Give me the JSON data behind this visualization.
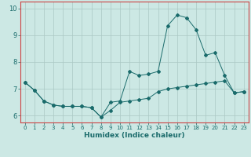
{
  "title": "",
  "xlabel": "Humidex (Indice chaleur)",
  "background_color": "#cce8e4",
  "grid_color": "#aac8c4",
  "line_color": "#1a6b6b",
  "spine_color": "#cc4444",
  "xlim": [
    -0.5,
    23.5
  ],
  "ylim": [
    5.75,
    10.25
  ],
  "yticks": [
    6,
    7,
    8,
    9,
    10
  ],
  "xticks": [
    0,
    1,
    2,
    3,
    4,
    5,
    6,
    7,
    8,
    9,
    10,
    11,
    12,
    13,
    14,
    15,
    16,
    17,
    18,
    19,
    20,
    21,
    22,
    23
  ],
  "line1_x": [
    0,
    1,
    2,
    3,
    4,
    5,
    6,
    7,
    8,
    9,
    10,
    11,
    12,
    13,
    14,
    15,
    16,
    17,
    18,
    19,
    20,
    21,
    22,
    23
  ],
  "line1_y": [
    7.25,
    6.95,
    6.55,
    6.4,
    6.35,
    6.35,
    6.35,
    6.3,
    5.95,
    6.2,
    6.5,
    6.55,
    6.6,
    6.65,
    6.9,
    7.0,
    7.05,
    7.1,
    7.15,
    7.2,
    7.25,
    7.3,
    6.85,
    6.9
  ],
  "line2_x": [
    0,
    1,
    2,
    3,
    4,
    5,
    6,
    7,
    8,
    9,
    10,
    11,
    12,
    13,
    14,
    15,
    16,
    17,
    18,
    19,
    20,
    21,
    22,
    23
  ],
  "line2_y": [
    7.25,
    6.95,
    6.55,
    6.4,
    6.35,
    6.35,
    6.35,
    6.3,
    5.95,
    6.5,
    6.55,
    7.65,
    7.5,
    7.55,
    7.65,
    9.35,
    9.75,
    9.65,
    9.2,
    8.25,
    8.35,
    7.5,
    6.85,
    6.9
  ]
}
